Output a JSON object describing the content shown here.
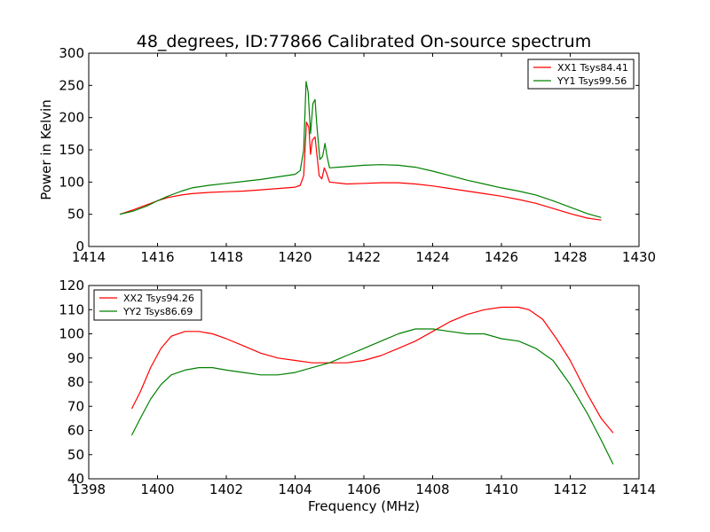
{
  "title": "48_degrees, ID:77866 Calibrated On-source spectrum",
  "chart_data": [
    {
      "type": "line",
      "title": "48_degrees, ID:77866 Calibrated On-source spectrum",
      "xlabel": "",
      "ylabel": "Power in Kelvin",
      "xlim": [
        1414,
        1430
      ],
      "ylim": [
        0,
        300
      ],
      "xticks": [
        "1414",
        "1416",
        "1418",
        "1420",
        "1422",
        "1424",
        "1426",
        "1428",
        "1430"
      ],
      "yticks": [
        "0",
        "50",
        "100",
        "150",
        "200",
        "250",
        "300"
      ],
      "grid": false,
      "legend_position": "top-right",
      "series": [
        {
          "name": "XX1 Tsys84.41",
          "color": "#ff0000",
          "points": [
            [
              1414.9,
              50
            ],
            [
              1415.3,
              57
            ],
            [
              1415.7,
              65
            ],
            [
              1416.0,
              71
            ],
            [
              1416.3,
              76
            ],
            [
              1416.7,
              80
            ],
            [
              1417.0,
              82
            ],
            [
              1417.5,
              84
            ],
            [
              1418.0,
              85
            ],
            [
              1418.5,
              86
            ],
            [
              1419.0,
              88
            ],
            [
              1419.5,
              90
            ],
            [
              1420.0,
              92
            ],
            [
              1420.15,
              95
            ],
            [
              1420.25,
              110
            ],
            [
              1420.33,
              193
            ],
            [
              1420.4,
              185
            ],
            [
              1420.45,
              143
            ],
            [
              1420.5,
              165
            ],
            [
              1420.58,
              170
            ],
            [
              1420.62,
              150
            ],
            [
              1420.7,
              110
            ],
            [
              1420.78,
              105
            ],
            [
              1420.85,
              122
            ],
            [
              1420.92,
              113
            ],
            [
              1421.0,
              100
            ],
            [
              1421.5,
              97
            ],
            [
              1422.0,
              98
            ],
            [
              1422.5,
              99
            ],
            [
              1423.0,
              99
            ],
            [
              1423.5,
              97
            ],
            [
              1424.0,
              94
            ],
            [
              1424.5,
              90
            ],
            [
              1425.0,
              86
            ],
            [
              1425.5,
              82
            ],
            [
              1426.0,
              78
            ],
            [
              1426.5,
              73
            ],
            [
              1427.0,
              67
            ],
            [
              1427.5,
              59
            ],
            [
              1428.0,
              51
            ],
            [
              1428.5,
              44
            ],
            [
              1428.9,
              41
            ]
          ]
        },
        {
          "name": "YY1 Tsys99.56",
          "color": "#008000",
          "points": [
            [
              1414.9,
              50
            ],
            [
              1415.3,
              55
            ],
            [
              1415.7,
              63
            ],
            [
              1416.0,
              71
            ],
            [
              1416.3,
              78
            ],
            [
              1416.7,
              86
            ],
            [
              1417.0,
              91
            ],
            [
              1417.5,
              95
            ],
            [
              1418.0,
              98
            ],
            [
              1418.5,
              101
            ],
            [
              1419.0,
              104
            ],
            [
              1419.5,
              108
            ],
            [
              1420.0,
              112
            ],
            [
              1420.15,
              118
            ],
            [
              1420.25,
              150
            ],
            [
              1420.32,
              256
            ],
            [
              1420.38,
              240
            ],
            [
              1420.45,
              175
            ],
            [
              1420.52,
              222
            ],
            [
              1420.58,
              228
            ],
            [
              1420.63,
              190
            ],
            [
              1420.72,
              135
            ],
            [
              1420.8,
              140
            ],
            [
              1420.87,
              160
            ],
            [
              1420.93,
              140
            ],
            [
              1421.0,
              122
            ],
            [
              1421.5,
              124
            ],
            [
              1422.0,
              126
            ],
            [
              1422.5,
              127
            ],
            [
              1423.0,
              126
            ],
            [
              1423.5,
              123
            ],
            [
              1424.0,
              117
            ],
            [
              1424.5,
              110
            ],
            [
              1425.0,
              103
            ],
            [
              1425.5,
              97
            ],
            [
              1426.0,
              91
            ],
            [
              1426.5,
              86
            ],
            [
              1427.0,
              80
            ],
            [
              1427.5,
              71
            ],
            [
              1428.0,
              61
            ],
            [
              1428.5,
              51
            ],
            [
              1428.9,
              45
            ]
          ]
        }
      ]
    },
    {
      "type": "line",
      "title": "",
      "xlabel": "Frequency (MHz)",
      "ylabel": "",
      "xlim": [
        1398,
        1414
      ],
      "ylim": [
        40,
        120
      ],
      "xticks": [
        "1398",
        "1400",
        "1402",
        "1404",
        "1406",
        "1408",
        "1410",
        "1412",
        "1414"
      ],
      "yticks": [
        "40",
        "50",
        "60",
        "70",
        "80",
        "90",
        "100",
        "110",
        "120"
      ],
      "grid": false,
      "legend_position": "top-left",
      "series": [
        {
          "name": "XX2 Tsys94.26",
          "color": "#ff0000",
          "points": [
            [
              1399.25,
              69
            ],
            [
              1399.5,
              76
            ],
            [
              1399.8,
              86
            ],
            [
              1400.1,
              94
            ],
            [
              1400.4,
              99
            ],
            [
              1400.8,
              101
            ],
            [
              1401.2,
              101
            ],
            [
              1401.6,
              100
            ],
            [
              1402.0,
              98
            ],
            [
              1402.5,
              95
            ],
            [
              1403.0,
              92
            ],
            [
              1403.5,
              90
            ],
            [
              1404.0,
              89
            ],
            [
              1404.5,
              88
            ],
            [
              1405.0,
              88
            ],
            [
              1405.5,
              88
            ],
            [
              1406.0,
              89
            ],
            [
              1406.5,
              91
            ],
            [
              1407.0,
              94
            ],
            [
              1407.5,
              97
            ],
            [
              1408.0,
              101
            ],
            [
              1408.5,
              105
            ],
            [
              1409.0,
              108
            ],
            [
              1409.5,
              110
            ],
            [
              1410.0,
              111
            ],
            [
              1410.5,
              111
            ],
            [
              1410.8,
              110
            ],
            [
              1411.2,
              106
            ],
            [
              1411.6,
              98
            ],
            [
              1412.0,
              89
            ],
            [
              1412.5,
              75
            ],
            [
              1412.9,
              65
            ],
            [
              1413.25,
              59
            ]
          ]
        },
        {
          "name": "YY2 Tsys86.69",
          "color": "#008000",
          "points": [
            [
              1399.25,
              58
            ],
            [
              1399.5,
              65
            ],
            [
              1399.8,
              73
            ],
            [
              1400.1,
              79
            ],
            [
              1400.4,
              83
            ],
            [
              1400.8,
              85
            ],
            [
              1401.2,
              86
            ],
            [
              1401.6,
              86
            ],
            [
              1402.0,
              85
            ],
            [
              1402.5,
              84
            ],
            [
              1403.0,
              83
            ],
            [
              1403.5,
              83
            ],
            [
              1404.0,
              84
            ],
            [
              1404.5,
              86
            ],
            [
              1405.0,
              88
            ],
            [
              1405.5,
              91
            ],
            [
              1406.0,
              94
            ],
            [
              1406.5,
              97
            ],
            [
              1407.0,
              100
            ],
            [
              1407.5,
              102
            ],
            [
              1408.0,
              102
            ],
            [
              1408.5,
              101
            ],
            [
              1409.0,
              100
            ],
            [
              1409.5,
              100
            ],
            [
              1410.0,
              98
            ],
            [
              1410.5,
              97
            ],
            [
              1411.0,
              94
            ],
            [
              1411.5,
              89
            ],
            [
              1412.0,
              79
            ],
            [
              1412.5,
              67
            ],
            [
              1412.9,
              56
            ],
            [
              1413.25,
              46
            ]
          ]
        }
      ]
    }
  ]
}
